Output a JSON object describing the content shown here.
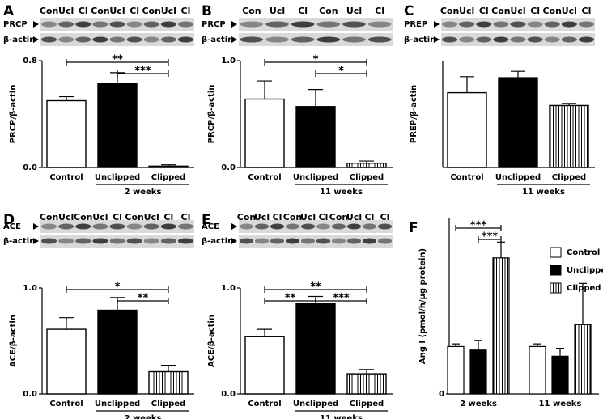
{
  "chart_data": [
    {
      "type": "bar",
      "label": "A",
      "lanes": [
        "Con",
        "Ucl",
        "Cl",
        "Con",
        "Ucl",
        "Cl",
        "Con",
        "Ucl",
        "Cl"
      ],
      "blots": [
        "PRCP",
        "β-actin"
      ],
      "ylabel": "PRCP/β-actin",
      "categories": [
        "Control",
        "Unclipped",
        "Clipped"
      ],
      "values": [
        0.5,
        0.63,
        0.01
      ],
      "errors": [
        0.03,
        0.08,
        0.01
      ],
      "fills": [
        "#ffffff",
        "#000000",
        "stripes"
      ],
      "group_label": "2 weeks",
      "ylim": [
        0,
        0.8
      ],
      "yticks": [
        {
          "value": 0,
          "label": "0.0"
        },
        0.8
      ],
      "significance": [
        {
          "between": [
            "Control",
            "Clipped"
          ],
          "label": "**"
        },
        {
          "between": [
            "Unclipped",
            "Clipped"
          ],
          "label": "***"
        }
      ]
    },
    {
      "type": "bar",
      "label": "B",
      "lanes": [
        "Con",
        "Ucl",
        "Cl",
        "Con",
        "Ucl",
        "Cl"
      ],
      "blots": [
        "PRCP",
        "β-actin"
      ],
      "ylabel": "PRCP/β-actin",
      "categories": [
        "Control",
        "Unclipped",
        "Clipped"
      ],
      "values": [
        0.64,
        0.57,
        0.04
      ],
      "errors": [
        0.17,
        0.16,
        0.02
      ],
      "fills": [
        "#ffffff",
        "#000000",
        "stripes"
      ],
      "group_label": "11 weeks",
      "ylim": [
        0,
        1
      ],
      "yticks": [
        {
          "value": 0,
          "label": "0.0"
        },
        {
          "value": 1,
          "label": "1.0"
        }
      ],
      "significance": [
        {
          "between": [
            "Control",
            "Clipped"
          ],
          "label": "*"
        },
        {
          "between": [
            "Unclipped",
            "Clipped"
          ],
          "label": "*"
        }
      ]
    },
    {
      "type": "bar",
      "label": "C",
      "lanes": [
        "Con",
        "Ucl",
        "Cl",
        "Con",
        "Ucl",
        "Cl",
        "Con",
        "Ucl",
        "Cl"
      ],
      "blots": [
        "PREP",
        "β-actin"
      ],
      "ylabel": "PREP/β-actin",
      "categories": [
        "Control",
        "Unclipped",
        "Clipped"
      ],
      "values": [
        0.7,
        0.84,
        0.58
      ],
      "errors": [
        0.15,
        0.06,
        0.02
      ],
      "fills": [
        "#ffffff",
        "#000000",
        "stripes"
      ],
      "group_label": "11 weeks",
      "ylim": [
        0,
        1
      ],
      "yticks": [],
      "significance": []
    },
    {
      "type": "bar",
      "label": "D",
      "lanes": [
        "Con",
        "Ucl",
        "Con",
        "Ucl",
        "Cl",
        "Con",
        "Ucl",
        "Cl",
        "Cl"
      ],
      "blots": [
        "ACE",
        "β-actin"
      ],
      "ylabel": "ACE/β-actin",
      "categories": [
        "Control",
        "Unclipped",
        "Clipped"
      ],
      "values": [
        0.61,
        0.79,
        0.21
      ],
      "errors": [
        0.11,
        0.12,
        0.06
      ],
      "fills": [
        "#ffffff",
        "#000000",
        "stripes"
      ],
      "group_label": "2 weeks",
      "ylim": [
        0,
        1
      ],
      "yticks": [
        {
          "value": 0,
          "label": "0.0"
        },
        {
          "value": 1,
          "label": "1.0"
        }
      ],
      "significance": [
        {
          "between": [
            "Control",
            "Clipped"
          ],
          "label": "*"
        },
        {
          "between": [
            "Unclipped",
            "Clipped"
          ],
          "label": "**"
        }
      ]
    },
    {
      "type": "bar",
      "label": "E",
      "lanes": [
        "Con",
        "Ucl",
        "Cl",
        "Con",
        "Ucl",
        "Cl",
        "Con",
        "Ucl",
        "Cl",
        "Cl"
      ],
      "blots": [
        "ACE",
        "β-actin"
      ],
      "ylabel": "ACE/β-actin",
      "categories": [
        "Control",
        "Unclipped",
        "Clipped"
      ],
      "values": [
        0.54,
        0.85,
        0.19
      ],
      "errors": [
        0.07,
        0.07,
        0.04
      ],
      "fills": [
        "#ffffff",
        "#000000",
        "stripes"
      ],
      "group_label": "11 weeks",
      "ylim": [
        0,
        1
      ],
      "yticks": [
        {
          "value": 0,
          "label": "0.0"
        },
        {
          "value": 1,
          "label": "1.0"
        }
      ],
      "significance": [
        {
          "between": [
            "Control",
            "Clipped"
          ],
          "label": "**"
        },
        {
          "between": [
            "Control",
            "Unclipped"
          ],
          "label": "**"
        },
        {
          "between": [
            "Unclipped",
            "Clipped"
          ],
          "label": "***"
        }
      ]
    },
    {
      "type": "grouped_bar",
      "label": "F",
      "ylabel": "Ang I (pmol/h/µg protein)",
      "categories": [
        "2 weeks",
        "11 weeks"
      ],
      "series": [
        {
          "name": "Control",
          "color": "#ffffff",
          "values": [
            54,
            54
          ],
          "errors": [
            3,
            3
          ]
        },
        {
          "name": "Unclipped",
          "color": "#000000",
          "values": [
            50,
            43
          ],
          "errors": [
            11,
            9
          ]
        },
        {
          "name": "Clipped",
          "color": "stripes",
          "values": [
            155,
            79
          ],
          "errors": [
            18,
            47
          ]
        }
      ],
      "ylim": [
        0,
        200
      ],
      "yticks": [
        0
      ],
      "legend": "upper right",
      "significance": [
        {
          "category": "2 weeks",
          "between": [
            "Control",
            "Clipped"
          ],
          "label": "***"
        },
        {
          "category": "2 weeks",
          "between": [
            "Unclipped",
            "Clipped"
          ],
          "label": "***"
        }
      ]
    }
  ]
}
